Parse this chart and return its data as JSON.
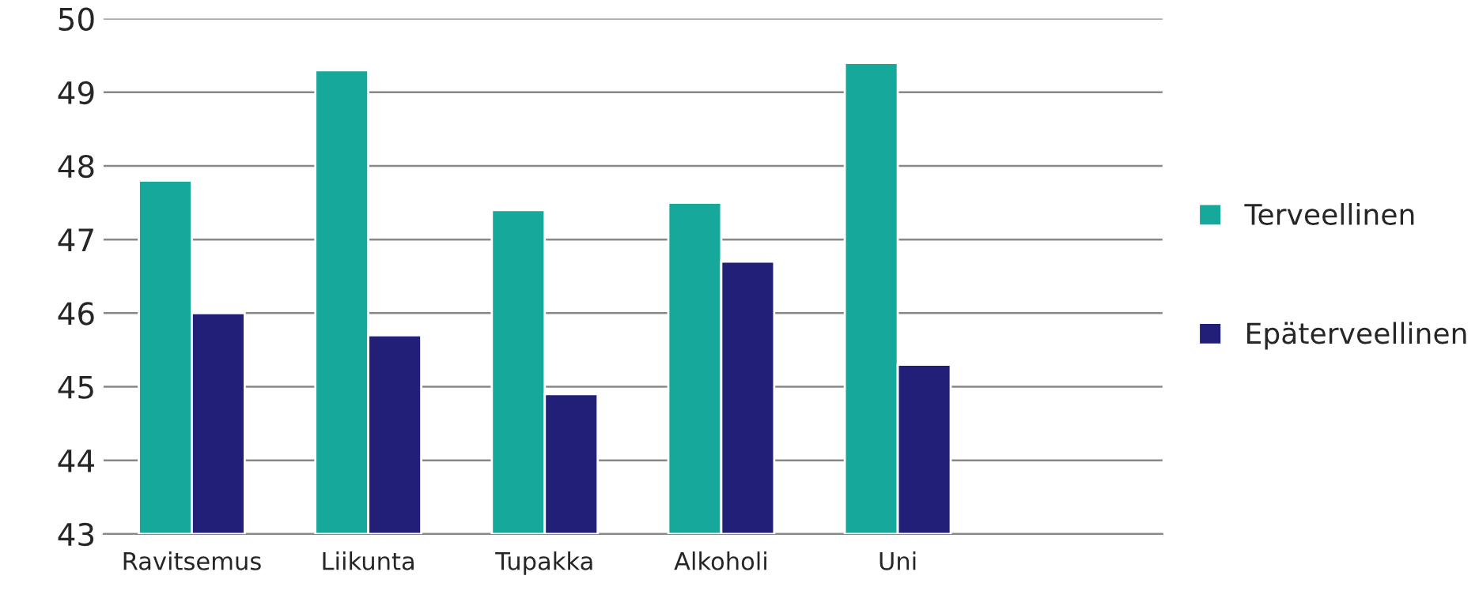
{
  "chart_data": {
    "type": "bar",
    "categories": [
      "Ravitsemus",
      "Liikunta",
      "Tupakka",
      "Alkoholi",
      "Uni",
      null
    ],
    "series": [
      {
        "name": "Terveellinen",
        "color": "#17a89c",
        "values": [
          47.8,
          49.3,
          47.4,
          47.5,
          49.4,
          null
        ]
      },
      {
        "name": "Epäterveellinen",
        "color": "#221f78",
        "values": [
          46.0,
          45.7,
          44.9,
          46.7,
          45.3,
          null
        ]
      }
    ],
    "ylim": [
      43,
      50
    ],
    "yticks": [
      43,
      44,
      45,
      46,
      47,
      48,
      49,
      50
    ],
    "grid": "y",
    "legend": "right"
  }
}
